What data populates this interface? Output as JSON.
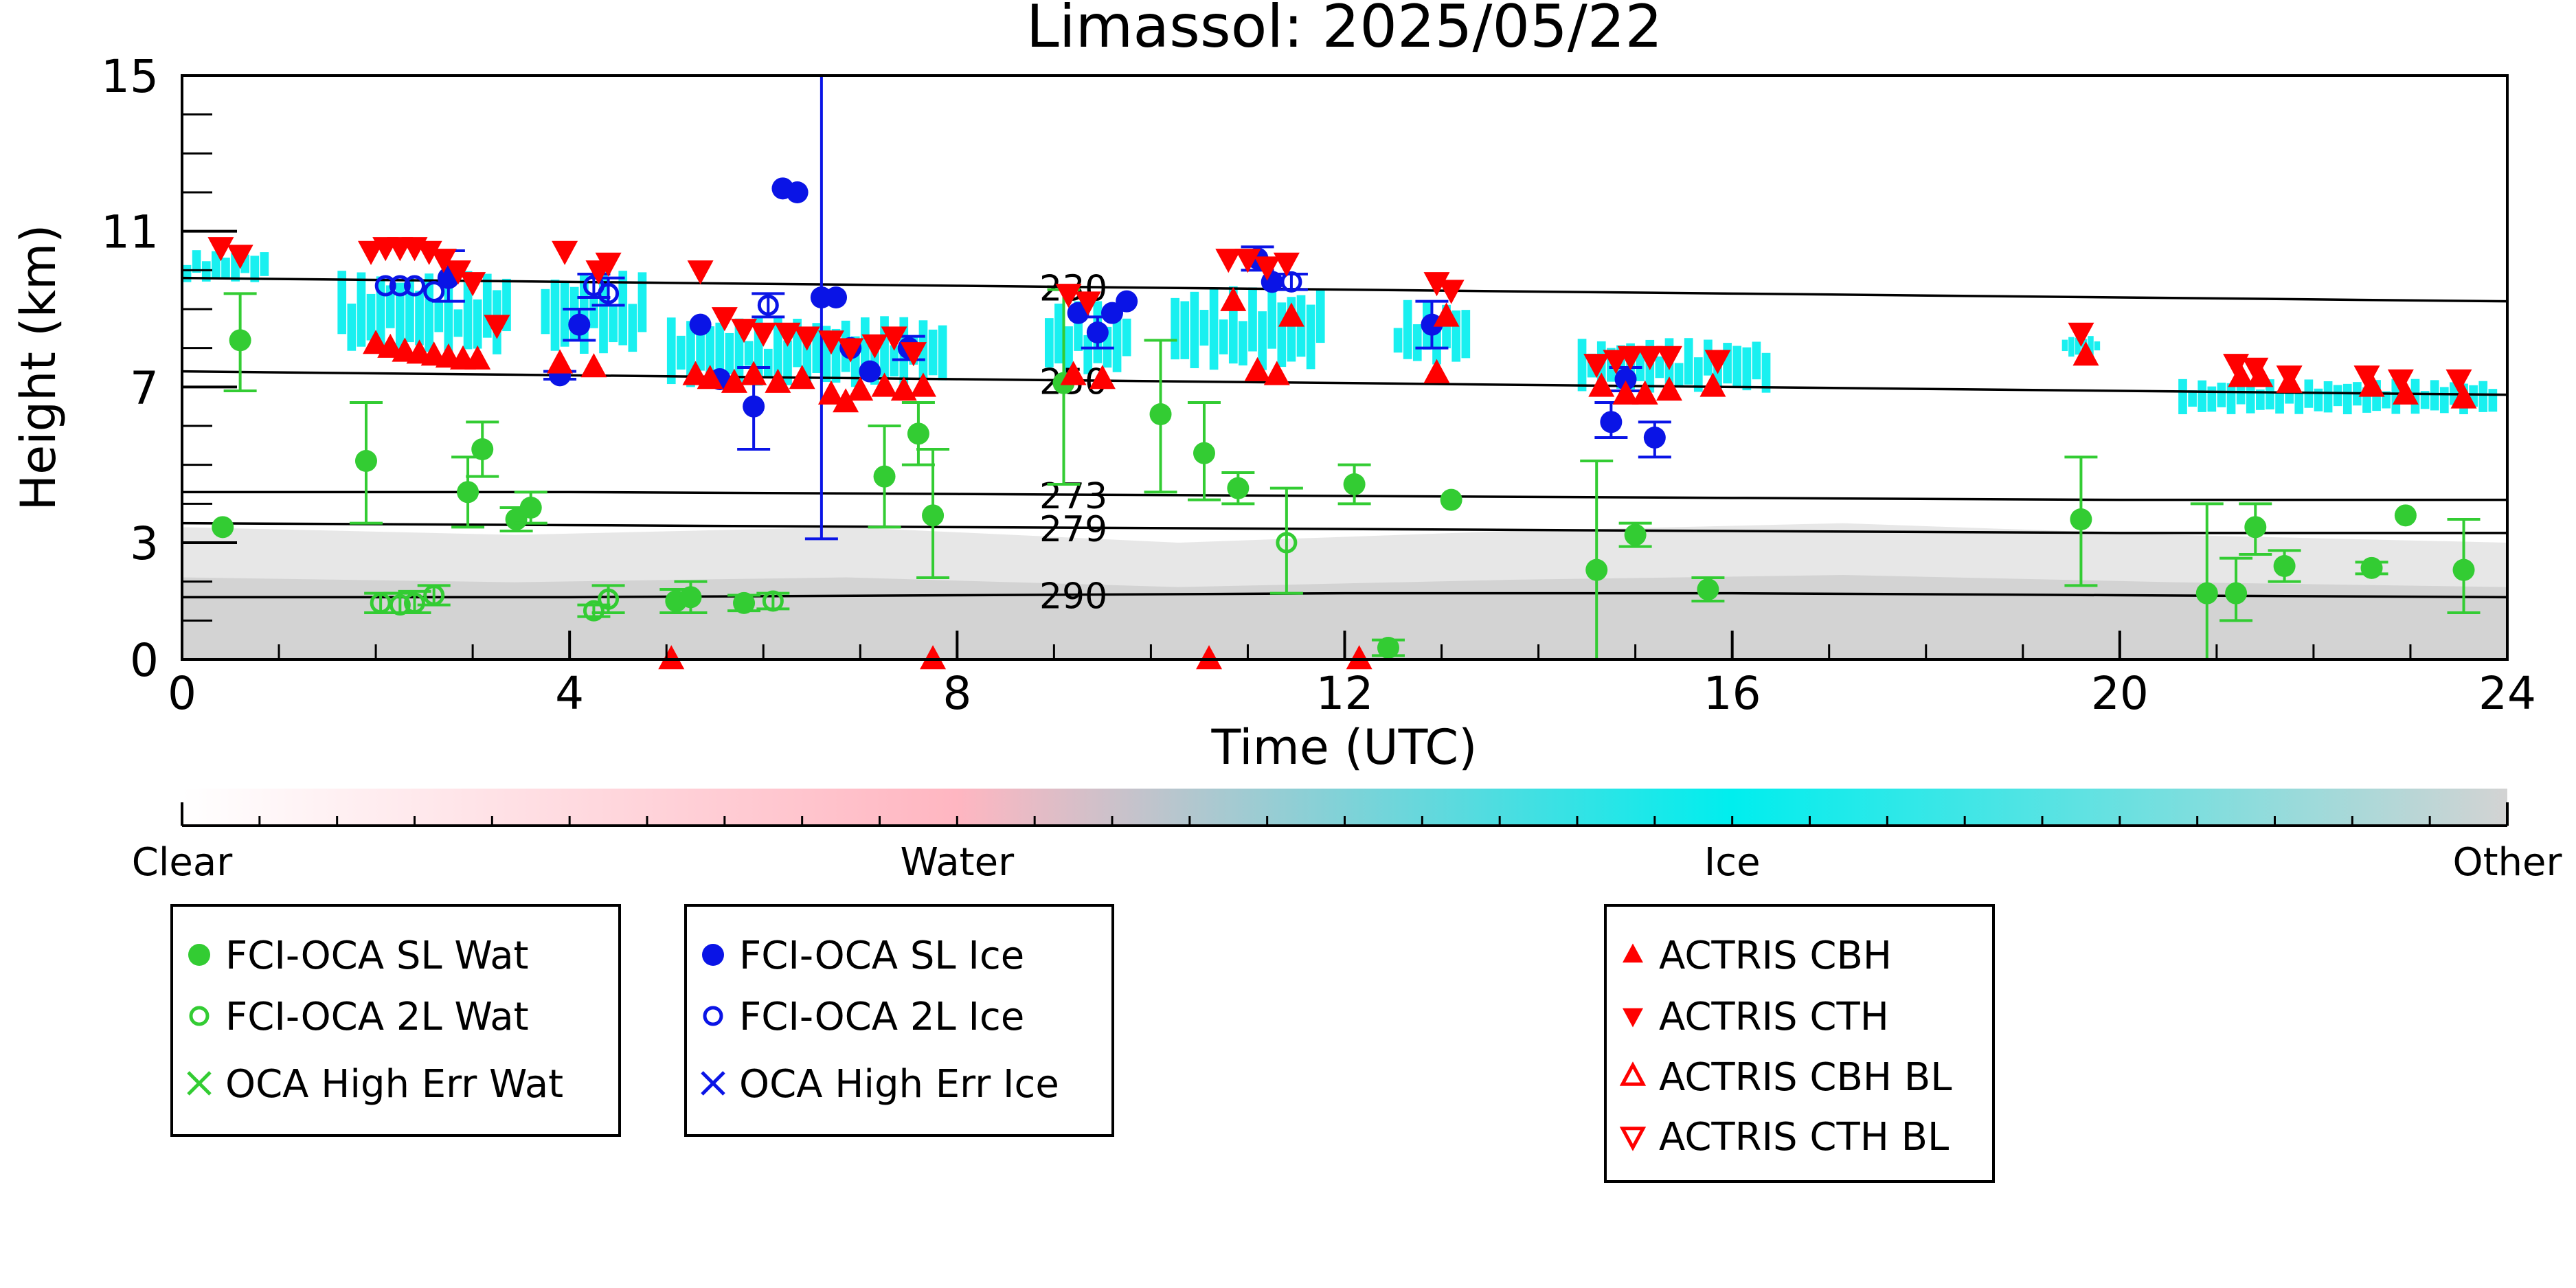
{
  "chart_data": {
    "type": "scatter",
    "title": "Limassol: 2025/05/22",
    "xlabel": "Time (UTC)",
    "ylabel": "Height (km)",
    "xlim": [
      0,
      24
    ],
    "ylim": [
      0,
      15
    ],
    "xticks": [
      "0",
      "4",
      "8",
      "12",
      "16",
      "20",
      "24"
    ],
    "xtick_values": [
      0,
      4,
      8,
      12,
      16,
      20,
      24
    ],
    "yticks": [
      "0",
      "3",
      "7",
      "11",
      "15"
    ],
    "ytick_values": [
      0,
      3,
      7,
      11,
      15
    ],
    "colors": {
      "water": "#33cc33",
      "ice": "#0a14e6",
      "actris": "#ff0000",
      "cloudnet_ice": "#00eeee",
      "cloudnet_other": "#d3d3d3"
    },
    "isotherms": [
      {
        "label": "230",
        "x": [
          0,
          4,
          8,
          12,
          16,
          20,
          24
        ],
        "y": [
          9.8,
          9.7,
          9.6,
          9.5,
          9.4,
          9.3,
          9.2
        ]
      },
      {
        "label": "250",
        "x": [
          0,
          4,
          8,
          12,
          16,
          20,
          24
        ],
        "y": [
          7.4,
          7.3,
          7.2,
          7.1,
          7.0,
          6.9,
          6.8
        ]
      },
      {
        "label": "273",
        "x": [
          0,
          4,
          8,
          12,
          16,
          20,
          24
        ],
        "y": [
          4.3,
          4.3,
          4.25,
          4.2,
          4.15,
          4.1,
          4.1
        ]
      },
      {
        "label": "279",
        "x": [
          0,
          4,
          8,
          12,
          16,
          20,
          24
        ],
        "y": [
          3.5,
          3.45,
          3.4,
          3.35,
          3.3,
          3.25,
          3.25
        ]
      },
      {
        "label": "290",
        "x": [
          0,
          4,
          8,
          12,
          16,
          20,
          24
        ],
        "y": [
          1.6,
          1.6,
          1.65,
          1.7,
          1.7,
          1.65,
          1.6
        ]
      }
    ],
    "cloudnet_background": {
      "ice_regions": [
        [
          0.0,
          0.9,
          9.6,
          10.6
        ],
        [
          1.6,
          3.4,
          7.6,
          10.2
        ],
        [
          3.7,
          4.8,
          7.6,
          10.2
        ],
        [
          5.0,
          7.9,
          6.8,
          9.0
        ],
        [
          8.9,
          9.8,
          7.1,
          9.4
        ],
        [
          10.2,
          11.8,
          7.2,
          9.8
        ],
        [
          12.5,
          13.3,
          7.4,
          9.4
        ],
        [
          14.4,
          16.4,
          6.7,
          8.4
        ],
        [
          19.4,
          19.8,
          7.7,
          8.4
        ],
        [
          20.6,
          23.9,
          6.2,
          7.3
        ]
      ],
      "surface_other_top": [
        3.4,
        3.2,
        3.4,
        3.0,
        3.3,
        3.5,
        3.2,
        3.0
      ]
    },
    "series": [
      {
        "name": "FCI-OCA SL Wat",
        "marker": "filled-circle",
        "color": "#33cc33",
        "points": [
          {
            "x": 0.42,
            "y": 3.4
          },
          {
            "x": 0.6,
            "y": 8.2,
            "lo": 6.9,
            "hi": 9.4
          },
          {
            "x": 1.9,
            "y": 5.1,
            "lo": 3.5,
            "hi": 6.6
          },
          {
            "x": 2.95,
            "y": 4.3,
            "lo": 3.4,
            "hi": 5.2
          },
          {
            "x": 3.1,
            "y": 5.4,
            "lo": 4.7,
            "hi": 6.1
          },
          {
            "x": 3.45,
            "y": 3.6,
            "lo": 3.3,
            "hi": 3.9
          },
          {
            "x": 3.6,
            "y": 3.9,
            "lo": 3.5,
            "hi": 4.3
          },
          {
            "x": 5.1,
            "y": 1.5,
            "lo": 1.2,
            "hi": 1.8
          },
          {
            "x": 5.25,
            "y": 1.6,
            "lo": 1.2,
            "hi": 2.0
          },
          {
            "x": 5.8,
            "y": 1.45,
            "lo": 1.25,
            "hi": 1.65
          },
          {
            "x": 7.25,
            "y": 4.7,
            "lo": 3.4,
            "hi": 6.0
          },
          {
            "x": 7.6,
            "y": 5.8,
            "lo": 5.0,
            "hi": 6.6
          },
          {
            "x": 7.75,
            "y": 3.7,
            "lo": 2.1,
            "hi": 5.4
          },
          {
            "x": 9.1,
            "y": 7.1,
            "lo": 4.5,
            "hi": 9.5
          },
          {
            "x": 10.1,
            "y": 6.3,
            "lo": 4.3,
            "hi": 8.2
          },
          {
            "x": 10.55,
            "y": 5.3,
            "lo": 4.1,
            "hi": 6.6
          },
          {
            "x": 10.9,
            "y": 4.4,
            "lo": 4.0,
            "hi": 4.8
          },
          {
            "x": 12.1,
            "y": 4.5,
            "lo": 4.0,
            "hi": 5.0
          },
          {
            "x": 12.45,
            "y": 0.3,
            "lo": 0.1,
            "hi": 0.5
          },
          {
            "x": 13.1,
            "y": 4.1
          },
          {
            "x": 14.6,
            "y": 2.3,
            "lo": 0.0,
            "hi": 5.1
          },
          {
            "x": 15.0,
            "y": 3.2,
            "lo": 2.9,
            "hi": 3.5
          },
          {
            "x": 15.75,
            "y": 1.8,
            "lo": 1.5,
            "hi": 2.1
          },
          {
            "x": 19.6,
            "y": 3.6,
            "lo": 1.9,
            "hi": 5.2
          },
          {
            "x": 20.9,
            "y": 1.7,
            "lo": 0.0,
            "hi": 4.0
          },
          {
            "x": 21.2,
            "y": 1.7,
            "lo": 1.0,
            "hi": 2.6
          },
          {
            "x": 21.4,
            "y": 3.4,
            "lo": 2.7,
            "hi": 4.0
          },
          {
            "x": 21.7,
            "y": 2.4,
            "lo": 2.0,
            "hi": 2.8
          },
          {
            "x": 22.6,
            "y": 2.35,
            "lo": 2.2,
            "hi": 2.5
          },
          {
            "x": 22.95,
            "y": 3.7
          },
          {
            "x": 23.55,
            "y": 2.3,
            "lo": 1.2,
            "hi": 3.6
          }
        ]
      },
      {
        "name": "FCI-OCA 2L Wat",
        "marker": "open-circle",
        "color": "#33cc33",
        "points": [
          {
            "x": 2.05,
            "y": 1.45,
            "lo": 1.2,
            "hi": 1.7
          },
          {
            "x": 2.25,
            "y": 1.4,
            "lo": 1.2,
            "hi": 1.7
          },
          {
            "x": 2.4,
            "y": 1.45,
            "lo": 1.2,
            "hi": 1.75
          },
          {
            "x": 2.6,
            "y": 1.65,
            "lo": 1.4,
            "hi": 1.9
          },
          {
            "x": 4.25,
            "y": 1.25,
            "lo": 1.1,
            "hi": 1.4
          },
          {
            "x": 4.4,
            "y": 1.55,
            "lo": 1.2,
            "hi": 1.9
          },
          {
            "x": 6.1,
            "y": 1.5,
            "lo": 1.3,
            "hi": 1.7
          },
          {
            "x": 11.4,
            "y": 3.0,
            "lo": 1.7,
            "hi": 4.4
          }
        ]
      },
      {
        "name": "FCI-OCA SL Ice",
        "marker": "filled-circle",
        "color": "#0a14e6",
        "points": [
          {
            "x": 2.75,
            "y": 9.8,
            "lo": 9.2,
            "hi": 10.5
          },
          {
            "x": 3.9,
            "y": 7.3,
            "lo": 7.2,
            "hi": 7.4
          },
          {
            "x": 4.1,
            "y": 8.6,
            "lo": 8.2,
            "hi": 9.0
          },
          {
            "x": 5.35,
            "y": 8.6
          },
          {
            "x": 5.55,
            "y": 7.2
          },
          {
            "x": 5.9,
            "y": 6.5,
            "lo": 5.4,
            "hi": 7.5
          },
          {
            "x": 6.2,
            "y": 12.1
          },
          {
            "x": 6.35,
            "y": 12.0
          },
          {
            "x": 6.6,
            "y": 9.3,
            "lo": 3.1,
            "hi": 15.0
          },
          {
            "x": 6.75,
            "y": 9.3
          },
          {
            "x": 6.9,
            "y": 8.0
          },
          {
            "x": 7.1,
            "y": 7.4
          },
          {
            "x": 7.5,
            "y": 8.0,
            "lo": 7.7,
            "hi": 8.3
          },
          {
            "x": 9.25,
            "y": 8.9
          },
          {
            "x": 9.45,
            "y": 8.4,
            "lo": 8.0,
            "hi": 8.8
          },
          {
            "x": 9.6,
            "y": 8.9
          },
          {
            "x": 9.75,
            "y": 9.2
          },
          {
            "x": 11.1,
            "y": 10.3,
            "lo": 10.0,
            "hi": 10.6
          },
          {
            "x": 11.25,
            "y": 9.7
          },
          {
            "x": 12.9,
            "y": 8.6,
            "lo": 8.0,
            "hi": 9.2
          },
          {
            "x": 14.75,
            "y": 6.1,
            "lo": 5.7,
            "hi": 6.6
          },
          {
            "x": 14.9,
            "y": 7.2,
            "lo": 6.9,
            "hi": 7.5
          },
          {
            "x": 15.2,
            "y": 5.7,
            "lo": 5.2,
            "hi": 6.1
          }
        ]
      },
      {
        "name": "FCI-OCA 2L Ice",
        "marker": "open-circle",
        "color": "#0a14e6",
        "points": [
          {
            "x": 2.1,
            "y": 9.6
          },
          {
            "x": 2.25,
            "y": 9.6
          },
          {
            "x": 2.4,
            "y": 9.6
          },
          {
            "x": 2.6,
            "y": 9.45
          },
          {
            "x": 4.25,
            "y": 9.6,
            "lo": 9.3,
            "hi": 9.9
          },
          {
            "x": 4.4,
            "y": 9.4,
            "lo": 9.1,
            "hi": 9.8
          },
          {
            "x": 6.05,
            "y": 9.1,
            "lo": 8.8,
            "hi": 9.4
          },
          {
            "x": 11.45,
            "y": 9.7,
            "lo": 9.5,
            "hi": 9.9
          }
        ]
      },
      {
        "name": "OCA High Err Wat",
        "marker": "x",
        "color": "#33cc33",
        "points": []
      },
      {
        "name": "OCA High Err Ice",
        "marker": "x",
        "color": "#0a14e6",
        "points": []
      },
      {
        "name": "ACTRIS CBH",
        "marker": "triangle-up",
        "color": "#ff0000",
        "points": [
          {
            "x": 2.0,
            "y": 8.1
          },
          {
            "x": 2.15,
            "y": 8.0
          },
          {
            "x": 2.3,
            "y": 7.9
          },
          {
            "x": 2.45,
            "y": 7.85
          },
          {
            "x": 2.6,
            "y": 7.8
          },
          {
            "x": 2.75,
            "y": 7.75
          },
          {
            "x": 2.9,
            "y": 7.7
          },
          {
            "x": 3.05,
            "y": 7.7
          },
          {
            "x": 3.9,
            "y": 7.6
          },
          {
            "x": 4.25,
            "y": 7.5
          },
          {
            "x": 5.3,
            "y": 7.3
          },
          {
            "x": 5.45,
            "y": 7.2
          },
          {
            "x": 5.7,
            "y": 7.1
          },
          {
            "x": 5.9,
            "y": 7.3
          },
          {
            "x": 6.15,
            "y": 7.1
          },
          {
            "x": 6.4,
            "y": 7.2
          },
          {
            "x": 6.7,
            "y": 6.8
          },
          {
            "x": 6.85,
            "y": 6.6
          },
          {
            "x": 7.0,
            "y": 6.9
          },
          {
            "x": 7.25,
            "y": 7.0
          },
          {
            "x": 7.45,
            "y": 6.9
          },
          {
            "x": 7.65,
            "y": 7.0
          },
          {
            "x": 9.2,
            "y": 7.3
          },
          {
            "x": 9.5,
            "y": 7.2
          },
          {
            "x": 10.85,
            "y": 9.2
          },
          {
            "x": 11.1,
            "y": 7.4
          },
          {
            "x": 11.3,
            "y": 7.3
          },
          {
            "x": 11.45,
            "y": 8.8
          },
          {
            "x": 12.95,
            "y": 7.35
          },
          {
            "x": 13.05,
            "y": 8.8
          },
          {
            "x": 14.65,
            "y": 7.0
          },
          {
            "x": 14.9,
            "y": 6.8
          },
          {
            "x": 15.1,
            "y": 6.8
          },
          {
            "x": 15.35,
            "y": 6.9
          },
          {
            "x": 15.8,
            "y": 7.0
          },
          {
            "x": 19.65,
            "y": 7.8
          },
          {
            "x": 21.25,
            "y": 7.25
          },
          {
            "x": 21.45,
            "y": 7.25
          },
          {
            "x": 21.75,
            "y": 7.1
          },
          {
            "x": 22.6,
            "y": 7.0
          },
          {
            "x": 22.95,
            "y": 6.8
          },
          {
            "x": 23.55,
            "y": 6.7
          },
          {
            "x": 5.05,
            "y": 0.0
          },
          {
            "x": 7.75,
            "y": 0.0
          },
          {
            "x": 10.6,
            "y": 0.0
          },
          {
            "x": 12.15,
            "y": 0.0
          }
        ]
      },
      {
        "name": "ACTRIS CTH",
        "marker": "triangle-down",
        "color": "#ff0000",
        "points": [
          {
            "x": 0.4,
            "y": 10.6
          },
          {
            "x": 0.6,
            "y": 10.4
          },
          {
            "x": 1.95,
            "y": 10.5
          },
          {
            "x": 2.1,
            "y": 10.6
          },
          {
            "x": 2.25,
            "y": 10.6
          },
          {
            "x": 2.4,
            "y": 10.6
          },
          {
            "x": 2.55,
            "y": 10.5
          },
          {
            "x": 2.7,
            "y": 10.3
          },
          {
            "x": 2.85,
            "y": 10.0
          },
          {
            "x": 3.0,
            "y": 9.7
          },
          {
            "x": 3.25,
            "y": 8.6
          },
          {
            "x": 3.95,
            "y": 10.5
          },
          {
            "x": 4.3,
            "y": 10.0
          },
          {
            "x": 4.4,
            "y": 10.2
          },
          {
            "x": 5.35,
            "y": 10.0
          },
          {
            "x": 5.6,
            "y": 8.8
          },
          {
            "x": 5.8,
            "y": 8.5
          },
          {
            "x": 6.0,
            "y": 8.4
          },
          {
            "x": 6.25,
            "y": 8.4
          },
          {
            "x": 6.45,
            "y": 8.3
          },
          {
            "x": 6.7,
            "y": 8.2
          },
          {
            "x": 6.9,
            "y": 8.0
          },
          {
            "x": 7.15,
            "y": 8.1
          },
          {
            "x": 7.35,
            "y": 8.3
          },
          {
            "x": 7.55,
            "y": 7.9
          },
          {
            "x": 9.15,
            "y": 9.4
          },
          {
            "x": 9.35,
            "y": 9.2
          },
          {
            "x": 10.8,
            "y": 10.3
          },
          {
            "x": 11.0,
            "y": 10.3
          },
          {
            "x": 11.2,
            "y": 10.1
          },
          {
            "x": 11.4,
            "y": 10.2
          },
          {
            "x": 12.95,
            "y": 9.7
          },
          {
            "x": 13.1,
            "y": 9.5
          },
          {
            "x": 14.6,
            "y": 7.6
          },
          {
            "x": 14.8,
            "y": 7.7
          },
          {
            "x": 14.95,
            "y": 7.8
          },
          {
            "x": 15.15,
            "y": 7.8
          },
          {
            "x": 15.35,
            "y": 7.8
          },
          {
            "x": 15.85,
            "y": 7.7
          },
          {
            "x": 19.6,
            "y": 8.4
          },
          {
            "x": 21.2,
            "y": 7.6
          },
          {
            "x": 21.4,
            "y": 7.5
          },
          {
            "x": 21.75,
            "y": 7.3
          },
          {
            "x": 22.55,
            "y": 7.3
          },
          {
            "x": 22.9,
            "y": 7.2
          },
          {
            "x": 23.5,
            "y": 7.2
          }
        ]
      },
      {
        "name": "ACTRIS CBH BL",
        "marker": "open-triangle-up",
        "color": "#ff0000",
        "points": []
      },
      {
        "name": "ACTRIS CTH BL",
        "marker": "open-triangle-down",
        "color": "#ff0000",
        "points": []
      }
    ]
  },
  "colorbar": {
    "labels": [
      "Clear",
      "Water",
      "Ice",
      "Other"
    ],
    "stops": [
      "#ffffff",
      "#ffb6c1",
      "#00eeee",
      "#d3d3d3"
    ]
  },
  "legends": [
    {
      "items": [
        {
          "label": "FCI-OCA SL Wat",
          "marker": "filled-circle",
          "color": "#33cc33"
        },
        {
          "label": "FCI-OCA 2L Wat",
          "marker": "open-circle",
          "color": "#33cc33"
        },
        {
          "label": "OCA High Err Wat",
          "marker": "x",
          "color": "#33cc33"
        }
      ]
    },
    {
      "items": [
        {
          "label": "FCI-OCA SL Ice",
          "marker": "filled-circle",
          "color": "#0a14e6"
        },
        {
          "label": "FCI-OCA 2L Ice",
          "marker": "open-circle",
          "color": "#0a14e6"
        },
        {
          "label": "OCA High Err Ice",
          "marker": "x",
          "color": "#0a14e6"
        }
      ]
    },
    {
      "items": [
        {
          "label": "ACTRIS CBH",
          "marker": "triangle-up",
          "color": "#ff0000"
        },
        {
          "label": "ACTRIS CTH",
          "marker": "triangle-down",
          "color": "#ff0000"
        },
        {
          "label": "ACTRIS CBH BL",
          "marker": "open-triangle-up",
          "color": "#ff0000"
        },
        {
          "label": "ACTRIS CTH BL",
          "marker": "open-triangle-down",
          "color": "#ff0000"
        }
      ]
    }
  ]
}
